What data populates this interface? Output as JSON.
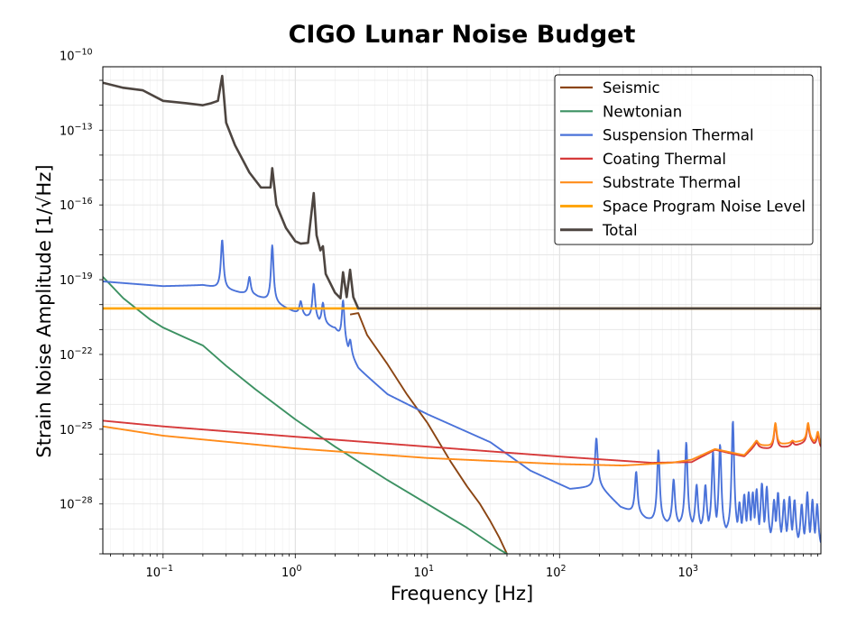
{
  "chart_data": {
    "type": "line",
    "title": "CIGO Lunar Noise Budget",
    "xlabel": "Frequency [Hz]",
    "ylabel": "Strain Noise Amplitude [1/√Hz]",
    "x_scale": "log",
    "y_scale": "log",
    "xlim": [
      0.035,
      9500
    ],
    "ylim": [
      1e-30,
      3.5e-11
    ],
    "grid": true,
    "legend_position": "top-right",
    "x_ticks": [
      {
        "value": 0.1,
        "base": "10",
        "exp": "−1"
      },
      {
        "value": 1,
        "base": "10",
        "exp": "0"
      },
      {
        "value": 10,
        "base": "10",
        "exp": "1"
      },
      {
        "value": 100,
        "base": "10",
        "exp": "2"
      },
      {
        "value": 1000,
        "base": "10",
        "exp": "3"
      }
    ],
    "y_ticks": [
      {
        "value": 1e-28,
        "base": "10",
        "exp": "−28"
      },
      {
        "value": 1e-25,
        "base": "10",
        "exp": "−25"
      },
      {
        "value": 1e-22,
        "base": "10",
        "exp": "−22"
      },
      {
        "value": 1e-19,
        "base": "10",
        "exp": "−19"
      },
      {
        "value": 1e-16,
        "base": "10",
        "exp": "−16"
      },
      {
        "value": 1e-13,
        "base": "10",
        "exp": "−13"
      },
      {
        "value": 1e-10,
        "base": "10",
        "exp": "−10"
      }
    ],
    "series": [
      {
        "name": "Seismic",
        "color": "#8b4513",
        "points": [
          [
            2.6,
            4e-21
          ],
          [
            3,
            4.6e-21
          ],
          [
            3.5,
            6e-22
          ],
          [
            5,
            4e-23
          ],
          [
            7,
            2.5e-24
          ],
          [
            10,
            1.8e-25
          ],
          [
            15,
            5e-27
          ],
          [
            20,
            5e-28
          ],
          [
            25,
            1e-28
          ],
          [
            30,
            2e-29
          ],
          [
            35,
            4.5e-30
          ],
          [
            40,
            1e-30
          ]
        ]
      },
      {
        "name": "Newtonian",
        "color": "#3c9162",
        "points": [
          [
            0.035,
            1.3e-19
          ],
          [
            0.05,
            1.8e-20
          ],
          [
            0.08,
            2.5e-21
          ],
          [
            0.1,
            1.2e-21
          ],
          [
            0.15,
            4.5e-22
          ],
          [
            0.2,
            2.3e-22
          ],
          [
            0.3,
            3.5e-23
          ],
          [
            0.5,
            4e-24
          ],
          [
            1,
            2.5e-25
          ],
          [
            2,
            2e-26
          ],
          [
            5,
            9e-28
          ],
          [
            10,
            1e-28
          ],
          [
            20,
            1.1e-29
          ],
          [
            35,
            1.5e-30
          ],
          [
            40,
            1e-30
          ]
        ]
      },
      {
        "name": "Suspension Thermal",
        "color": "#4a72d9",
        "base": [
          [
            0.035,
            8.5e-20
          ],
          [
            0.1,
            5.5e-20
          ],
          [
            0.2,
            6e-20
          ],
          [
            0.5,
            2.3e-20
          ],
          [
            1,
            5e-21
          ],
          [
            2,
            1.1e-21
          ],
          [
            3,
            2.7e-23
          ],
          [
            5,
            2.5e-24
          ],
          [
            10,
            4e-25
          ],
          [
            30,
            3e-26
          ],
          [
            60,
            2.2e-27
          ],
          [
            120,
            4e-28
          ],
          [
            200,
            5e-28
          ],
          [
            290,
            7.5e-29
          ],
          [
            500,
            2e-29
          ],
          [
            1000,
            1.2e-29
          ],
          [
            2000,
            6e-30
          ],
          [
            4000,
            3.5e-30
          ],
          [
            6000,
            2.5e-30
          ],
          [
            9500,
            1.5e-30
          ]
        ],
        "resonances": [
          {
            "f": 0.28,
            "peak": 4e-18
          },
          {
            "f": 0.45,
            "peak": 1.3e-19
          },
          {
            "f": 0.67,
            "peak": 2.4e-18
          },
          {
            "f": 1.1,
            "peak": 1.4e-20
          },
          {
            "f": 1.38,
            "peak": 7e-20
          },
          {
            "f": 1.62,
            "peak": 1.2e-20
          },
          {
            "f": 2.3,
            "peak": 1.5e-20
          },
          {
            "f": 2.6,
            "peak": 4e-22
          },
          {
            "f": 190,
            "peak": 4.5e-26
          },
          {
            "f": 380,
            "peak": 2e-27
          },
          {
            "f": 560,
            "peak": 1.5e-26
          },
          {
            "f": 730,
            "peak": 1e-27
          },
          {
            "f": 910,
            "peak": 3e-26
          },
          {
            "f": 1090,
            "peak": 6e-28
          },
          {
            "f": 1270,
            "peak": 6e-28
          },
          {
            "f": 1450,
            "peak": 1.3e-26
          },
          {
            "f": 1640,
            "peak": 2.5e-26
          },
          {
            "f": 2050,
            "peak": 2.2e-25
          },
          {
            "f": 2300,
            "peak": 1.2e-28
          },
          {
            "f": 2500,
            "peak": 2.5e-28
          },
          {
            "f": 2700,
            "peak": 3e-28
          },
          {
            "f": 2900,
            "peak": 3e-28
          },
          {
            "f": 3100,
            "peak": 4e-28
          },
          {
            "f": 3400,
            "peak": 7e-28
          },
          {
            "f": 3700,
            "peak": 5e-28
          },
          {
            "f": 4200,
            "peak": 1.5e-28
          },
          {
            "f": 4500,
            "peak": 3e-28
          },
          {
            "f": 5000,
            "peak": 1.5e-28
          },
          {
            "f": 5500,
            "peak": 2e-28
          },
          {
            "f": 6000,
            "peak": 1.5e-28
          },
          {
            "f": 6800,
            "peak": 1e-28
          },
          {
            "f": 7500,
            "peak": 3e-28
          },
          {
            "f": 8200,
            "peak": 1.5e-28
          },
          {
            "f": 8900,
            "peak": 1e-28
          }
        ]
      },
      {
        "name": "Coating Thermal",
        "color": "#d63a3a",
        "base": [
          [
            0.035,
            2.2e-25
          ],
          [
            0.1,
            1.3e-25
          ],
          [
            1,
            5e-26
          ],
          [
            10,
            2e-26
          ],
          [
            100,
            8e-27
          ],
          [
            500,
            4.5e-27
          ],
          [
            1000,
            4.8e-27
          ],
          [
            1500,
            1.5e-26
          ],
          [
            2500,
            8e-27
          ],
          [
            3000,
            2e-26
          ],
          [
            4000,
            1.5e-26
          ],
          [
            6000,
            2.2e-26
          ],
          [
            8000,
            3e-26
          ],
          [
            9500,
            1.5e-26
          ]
        ],
        "resonances": [
          {
            "f": 3100,
            "peak": 3e-26
          },
          {
            "f": 4300,
            "peak": 1.6e-25
          },
          {
            "f": 5800,
            "peak": 3e-26
          },
          {
            "f": 7600,
            "peak": 1.4e-25
          },
          {
            "f": 9000,
            "peak": 6e-26
          }
        ]
      },
      {
        "name": "Substrate Thermal",
        "color": "#ff8c1a",
        "base": [
          [
            0.035,
            1.3e-25
          ],
          [
            0.1,
            5.5e-26
          ],
          [
            1,
            1.7e-26
          ],
          [
            10,
            7e-27
          ],
          [
            100,
            4e-27
          ],
          [
            300,
            3.5e-27
          ],
          [
            700,
            4.5e-27
          ],
          [
            1000,
            6e-27
          ],
          [
            1500,
            1.6e-26
          ],
          [
            2500,
            9e-27
          ],
          [
            3000,
            2.5e-26
          ],
          [
            4000,
            2e-26
          ],
          [
            6000,
            3e-26
          ],
          [
            8000,
            3.5e-26
          ],
          [
            9500,
            2e-26
          ]
        ],
        "resonances": [
          {
            "f": 3100,
            "peak": 3.5e-26
          },
          {
            "f": 4300,
            "peak": 1.8e-25
          },
          {
            "f": 5800,
            "peak": 3.5e-26
          },
          {
            "f": 7600,
            "peak": 1.8e-25
          },
          {
            "f": 9000,
            "peak": 8e-26
          }
        ]
      },
      {
        "name": "Space Program Noise Level",
        "color": "#ffa500",
        "points": [
          [
            0.035,
            7e-21
          ],
          [
            9500,
            7e-21
          ]
        ]
      },
      {
        "name": "Total",
        "color": "#4d4540",
        "points": [
          [
            0.035,
            8e-12
          ],
          [
            0.05,
            5e-12
          ],
          [
            0.07,
            4e-12
          ],
          [
            0.1,
            1.5e-12
          ],
          [
            0.15,
            1.2e-12
          ],
          [
            0.2,
            1e-12
          ],
          [
            0.23,
            1.2e-12
          ],
          [
            0.26,
            1.5e-12
          ],
          [
            0.28,
            1.5e-11
          ],
          [
            0.3,
            2e-13
          ],
          [
            0.35,
            2.5e-14
          ],
          [
            0.45,
            2e-15
          ],
          [
            0.55,
            5e-16
          ],
          [
            0.65,
            5e-16
          ],
          [
            0.67,
            3e-15
          ],
          [
            0.72,
            1e-16
          ],
          [
            0.85,
            1.2e-17
          ],
          [
            1,
            3.5e-18
          ],
          [
            1.1,
            2.8e-18
          ],
          [
            1.25,
            3e-18
          ],
          [
            1.38,
            3e-16
          ],
          [
            1.45,
            6e-18
          ],
          [
            1.55,
            1.5e-18
          ],
          [
            1.62,
            2.2e-18
          ],
          [
            1.7,
            1.7e-19
          ],
          [
            2,
            3e-20
          ],
          [
            2.2,
            1.8e-20
          ],
          [
            2.3,
            2e-19
          ],
          [
            2.45,
            2e-20
          ],
          [
            2.6,
            2.5e-19
          ],
          [
            2.75,
            2e-20
          ],
          [
            3,
            7e-21
          ],
          [
            9500,
            7e-21
          ]
        ]
      }
    ]
  }
}
